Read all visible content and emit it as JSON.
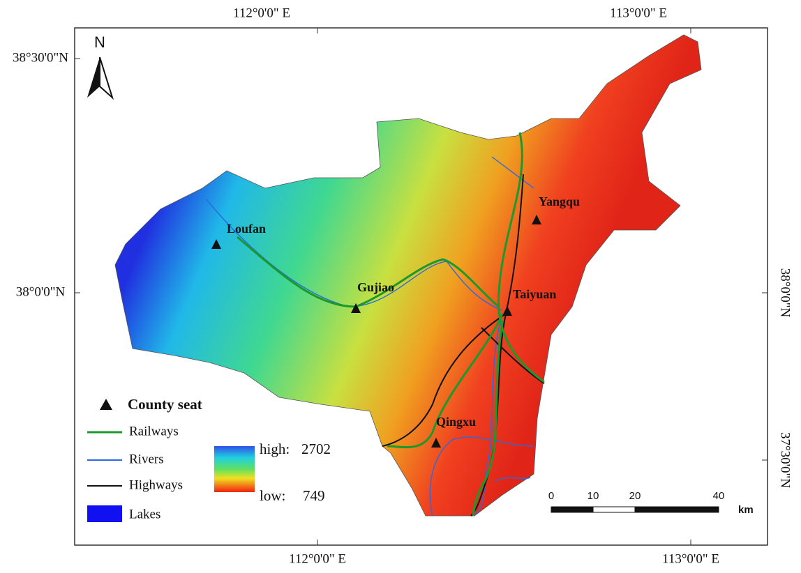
{
  "map": {
    "north": "N",
    "graticule": {
      "top": [
        "112°0'0\" E",
        "113°0'0\" E"
      ],
      "bottom": [
        "112°0'0\" E",
        "113°0'0\" E"
      ],
      "left": [
        "38°30'0\"N",
        "38°0'0\"N"
      ],
      "right": [
        "38°0'0\"N",
        "37°30'0\"N"
      ]
    },
    "county_seats": [
      "Loufan",
      "Gujiao",
      "Taiyuan",
      "Yangqu",
      "Qingxu"
    ],
    "legend": {
      "county_seat": "County seat",
      "railways": "Railways",
      "rivers": "Rivers",
      "highways": "Highways",
      "lakes": "Lakes",
      "high_label": "high:",
      "high_value": 2702,
      "low_label": "low:",
      "low_value": 749
    },
    "scale": {
      "ticks": [
        0,
        10,
        20,
        40
      ],
      "unit": "km"
    }
  }
}
